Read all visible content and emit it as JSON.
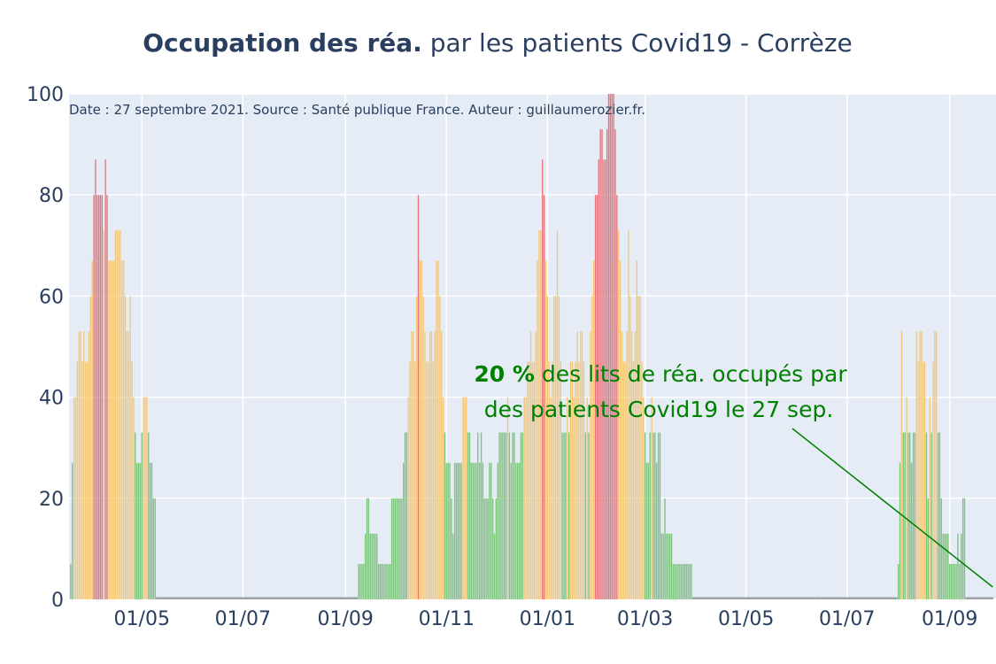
{
  "chart_data": {
    "type": "bar",
    "title": {
      "bold": "Occupation des réa.",
      "rest": " par les patients Covid19 - Corrèze"
    },
    "caption": "Date : 27 septembre 2021. Source : Santé publique France. Auteur : guillaumerozier.fr.",
    "annotation": {
      "value": "20",
      "value_suffix": " %",
      "line1_rest": " des lits de réa. occupés par",
      "line2": "des patients Covid19 le 27 sep."
    },
    "ylim": [
      0,
      100
    ],
    "y_ticks": [
      0,
      20,
      40,
      60,
      80,
      100
    ],
    "x_start": "2020-03-19",
    "x_end": "2021-09-27",
    "x_ticks": [
      {
        "date": "2020-05-01",
        "label": "01/05"
      },
      {
        "date": "2020-07-01",
        "label": "01/07"
      },
      {
        "date": "2020-09-01",
        "label": "01/09"
      },
      {
        "date": "2020-11-01",
        "label": "01/11"
      },
      {
        "date": "2021-01-01",
        "label": "01/01"
      },
      {
        "date": "2021-03-01",
        "label": "01/03"
      },
      {
        "date": "2021-05-01",
        "label": "01/05"
      },
      {
        "date": "2021-07-01",
        "label": "01/07"
      },
      {
        "date": "2021-09-01",
        "label": "01/09"
      }
    ],
    "grid": true,
    "colors": {
      "low": "#7dc27d",
      "medium": "#f4c777",
      "high": "#e8737a",
      "plot_bg": "#e5ecf6",
      "grid": "#ffffff",
      "text": "#2a3f5f",
      "annotation": "#008000"
    },
    "thresholds": {
      "medium": 40,
      "high": 80
    },
    "segments": [
      [
        "2020-03-19",
        [
          7,
          27,
          40,
          40,
          47,
          53,
          53,
          47,
          53,
          47,
          47,
          53,
          60,
          67,
          80,
          87,
          80,
          80,
          80,
          80,
          73,
          87,
          80,
          67,
          67,
          67,
          67,
          73,
          73,
          73,
          73,
          67,
          67,
          60,
          53,
          53,
          60,
          47,
          40,
          33,
          27,
          27,
          27,
          33,
          40,
          40,
          40,
          33,
          27,
          27,
          20,
          20
        ]
      ],
      [
        "2020-09-09",
        [
          7,
          7,
          7,
          7,
          13,
          20,
          20,
          13,
          13,
          13,
          13,
          13,
          7,
          7,
          7,
          7,
          7,
          7,
          7,
          7,
          20,
          20,
          20,
          20,
          20,
          20,
          20,
          27,
          33,
          33,
          40,
          47,
          53,
          53,
          47,
          60,
          80,
          67,
          67,
          60,
          53,
          47,
          47,
          53,
          53,
          47,
          53,
          67,
          67,
          60,
          53,
          40,
          33,
          27,
          27,
          27,
          20,
          13,
          27,
          27,
          27,
          27,
          27,
          40,
          40,
          40,
          33,
          33,
          27,
          27,
          27,
          27,
          33,
          27,
          33,
          27,
          20,
          20,
          20,
          27,
          27,
          20,
          13,
          20,
          27,
          33,
          33,
          33,
          33,
          33,
          40,
          33,
          27,
          33,
          33,
          27,
          27,
          27,
          33,
          33,
          40,
          40,
          47,
          47,
          53,
          47,
          47,
          53,
          67,
          73,
          73,
          87,
          80,
          67,
          60,
          47,
          40,
          47,
          60,
          60,
          73,
          60,
          47,
          33,
          33,
          33,
          40,
          33,
          47,
          47,
          40,
          47,
          53,
          47,
          53,
          53,
          47,
          33,
          40,
          33,
          53,
          60,
          67,
          80,
          80,
          87,
          93,
          93,
          87,
          87,
          93,
          100,
          100,
          100,
          100,
          93,
          80,
          73,
          67,
          53,
          47,
          47,
          53,
          73,
          60,
          53,
          47,
          53,
          67,
          60,
          60,
          47,
          40,
          33,
          27,
          27,
          33,
          40,
          33,
          33,
          27,
          33,
          33,
          13,
          13,
          20,
          13,
          13,
          13,
          13,
          7,
          7,
          7,
          7,
          7,
          7,
          7,
          7,
          7,
          7,
          7,
          7
        ]
      ],
      [
        "2021-08-01",
        [
          7,
          27,
          53,
          33,
          33,
          40,
          33,
          33,
          27,
          33,
          33,
          53,
          47,
          53,
          53,
          47,
          47,
          33,
          20,
          40,
          33,
          47,
          53,
          53,
          33,
          33,
          20,
          13,
          13,
          13,
          13,
          7,
          7,
          7,
          7,
          7,
          13,
          7,
          13,
          20,
          20
        ]
      ]
    ]
  }
}
